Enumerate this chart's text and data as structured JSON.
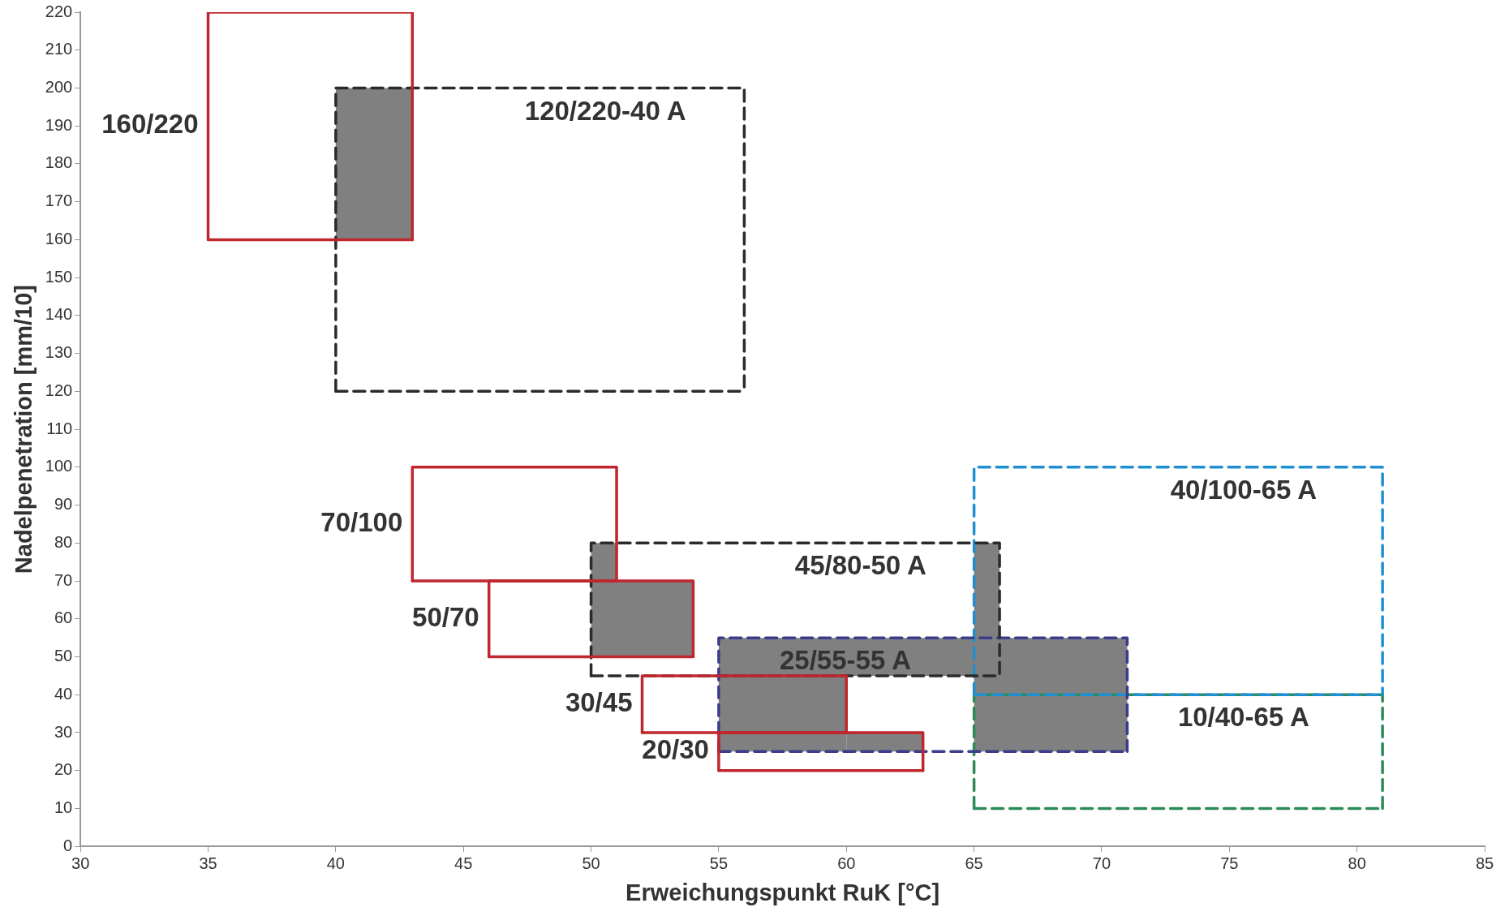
{
  "chart_data": {
    "type": "line",
    "xlabel": "Erweichungspunkt RuK [°C]",
    "ylabel": "Nadelpenetration [mm/10]",
    "xlim": [
      30,
      85
    ],
    "xticks": [
      30,
      35,
      40,
      45,
      50,
      55,
      60,
      65,
      70,
      75,
      80,
      85
    ],
    "ylim": [
      0,
      220
    ],
    "yticks": [
      0,
      10,
      20,
      30,
      40,
      50,
      60,
      70,
      80,
      90,
      100,
      110,
      120,
      130,
      140,
      150,
      160,
      170,
      180,
      190,
      200,
      210,
      220
    ],
    "grid": false,
    "legend": false,
    "marker": "none",
    "series": [
      {
        "color": "#808080",
        "x": [
          40,
          43
        ],
        "values": [
          null,
          null
        ],
        "lower": [
          160,
          160
        ],
        "upper": [
          200,
          200
        ]
      },
      {
        "color": "#808080",
        "x": [
          50,
          51,
          51,
          54
        ],
        "values": [
          null,
          null,
          null,
          null
        ],
        "lower": [
          50,
          50,
          50,
          50
        ],
        "upper": [
          80,
          80,
          70,
          70
        ]
      },
      {
        "color": "#808080",
        "x": [
          55,
          60,
          60,
          65,
          65,
          66,
          66,
          71
        ],
        "values": [
          null,
          null,
          null,
          null,
          null,
          null,
          null,
          null
        ],
        "lower": [
          25,
          25,
          45,
          45,
          25,
          25,
          25,
          25
        ],
        "upper": [
          55,
          55,
          55,
          55,
          80,
          80,
          55,
          55
        ]
      },
      {
        "color": "#808080",
        "x": [
          60,
          63
        ],
        "values": [
          null,
          null
        ],
        "lower": [
          25,
          25
        ],
        "upper": [
          30,
          30
        ]
      },
      {
        "name": "160/220",
        "color": "#c0262d",
        "line_style": "solid",
        "x": [
          35,
          35,
          43,
          43
        ],
        "values": [
          160,
          220,
          220,
          160
        ]
      },
      {
        "color": "#c0262d",
        "line_style": "solid",
        "x": [
          35,
          43
        ],
        "values": [
          160,
          160
        ]
      },
      {
        "name": "70/100",
        "color": "#c0262d",
        "line_style": "solid",
        "x": [
          43,
          43,
          51,
          51
        ],
        "values": [
          70,
          100,
          100,
          70
        ]
      },
      {
        "color": "#c0262d",
        "line_style": "solid",
        "x": [
          43,
          51
        ],
        "values": [
          70,
          70
        ]
      },
      {
        "name": "50/70",
        "color": "#c0262d",
        "line_style": "solid",
        "x": [
          46,
          46,
          54,
          54
        ],
        "values": [
          50,
          70,
          70,
          50
        ]
      },
      {
        "color": "#c0262d",
        "line_style": "solid",
        "x": [
          46,
          54
        ],
        "values": [
          50,
          50
        ]
      },
      {
        "name": "30/45",
        "color": "#c0262d",
        "line_style": "solid",
        "x": [
          52,
          52,
          60,
          60
        ],
        "values": [
          30,
          45,
          45,
          30
        ]
      },
      {
        "color": "#c0262d",
        "line_style": "solid",
        "x": [
          52,
          60
        ],
        "values": [
          30,
          30
        ]
      },
      {
        "name": "20/30",
        "color": "#c0262d",
        "line_style": "solid",
        "x": [
          55,
          55,
          63,
          63
        ],
        "values": [
          20,
          30,
          30,
          20
        ]
      },
      {
        "color": "#c0262d",
        "line_style": "solid",
        "x": [
          55,
          63
        ],
        "values": [
          20,
          20
        ]
      },
      {
        "name": "120/220-40 A",
        "color": "#2b2b2b",
        "line_style": "dashed",
        "x": [
          40,
          40,
          56,
          56
        ],
        "values": [
          120,
          200,
          200,
          120
        ]
      },
      {
        "color": "#2b2b2b",
        "line_style": "dashed",
        "x": [
          40,
          56
        ],
        "values": [
          120,
          120
        ]
      },
      {
        "name": "45/80-50 A",
        "color": "#2b2b2b",
        "line_style": "dashed",
        "x": [
          50,
          50,
          66,
          66
        ],
        "values": [
          45,
          80,
          80,
          45
        ]
      },
      {
        "color": "#2b2b2b",
        "line_style": "dashed",
        "x": [
          50,
          66
        ],
        "values": [
          45,
          45
        ]
      },
      {
        "name": "25/55-55 A",
        "color": "#3c3c8c",
        "line_style": "dashed",
        "x": [
          55,
          55,
          71,
          71
        ],
        "values": [
          25,
          55,
          55,
          25
        ]
      },
      {
        "color": "#3c3c8c",
        "line_style": "dashed",
        "x": [
          55,
          71
        ],
        "values": [
          25,
          25
        ]
      },
      {
        "name": "40/100-65 A",
        "color": "#1f8fd0",
        "line_style": "dashed",
        "x": [
          65,
          65,
          81,
          81
        ],
        "values": [
          40,
          100,
          100,
          40
        ]
      },
      {
        "color": "#1f8fd0",
        "line_style": "dashed",
        "x": [
          65,
          81
        ],
        "values": [
          40,
          40
        ]
      },
      {
        "name": "10/40-65 A",
        "color": "#2e8b57",
        "line_style": "dashed",
        "x": [
          65,
          65,
          81,
          81
        ],
        "values": [
          10,
          40,
          40,
          10
        ]
      },
      {
        "color": "#2e8b57",
        "line_style": "dashed",
        "x": [
          65,
          81
        ],
        "values": [
          10,
          10
        ]
      }
    ]
  }
}
